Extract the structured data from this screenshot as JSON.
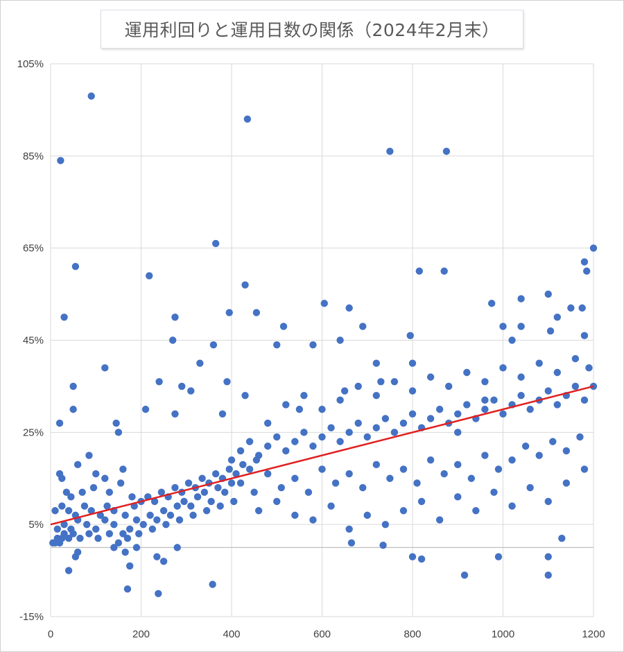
{
  "chart_data": {
    "type": "scatter",
    "title": "運用利回りと運用日数の関係（2024年2月末）",
    "xlabel": "",
    "ylabel": "",
    "xlim": [
      0,
      1200
    ],
    "ylim": [
      -15,
      105
    ],
    "x_ticks": [
      0,
      200,
      400,
      600,
      800,
      1000,
      1200
    ],
    "x_tick_labels": [
      "0",
      "200",
      "400",
      "600",
      "800",
      "1000",
      "1200"
    ],
    "y_ticks": [
      -15,
      5,
      25,
      45,
      65,
      85,
      105
    ],
    "y_tick_labels": [
      "-15%",
      "5%",
      "25%",
      "45%",
      "65%",
      "85%",
      "105%"
    ],
    "grid": true,
    "legend": "none",
    "series": [
      {
        "marker_color": "#4472C4",
        "points": [
          [
            90,
            98
          ],
          [
            435,
            93
          ],
          [
            750,
            86
          ],
          [
            875,
            86
          ],
          [
            22,
            84
          ],
          [
            365,
            66
          ],
          [
            1200,
            65
          ],
          [
            55,
            61
          ],
          [
            1180,
            62
          ],
          [
            1185,
            60
          ],
          [
            815,
            60
          ],
          [
            870,
            60
          ],
          [
            218,
            59
          ],
          [
            430,
            57
          ],
          [
            30,
            50
          ],
          [
            275,
            50
          ],
          [
            395,
            51
          ],
          [
            455,
            51
          ],
          [
            1100,
            55
          ],
          [
            1040,
            54
          ],
          [
            605,
            53
          ],
          [
            660,
            52
          ],
          [
            1150,
            52
          ],
          [
            1175,
            52
          ],
          [
            1120,
            50
          ],
          [
            975,
            53
          ],
          [
            515,
            48
          ],
          [
            690,
            48
          ],
          [
            1000,
            48
          ],
          [
            1040,
            48
          ],
          [
            795,
            46
          ],
          [
            640,
            45
          ],
          [
            270,
            45
          ],
          [
            360,
            44
          ],
          [
            500,
            44
          ],
          [
            580,
            44
          ],
          [
            1105,
            47
          ],
          [
            1180,
            46
          ],
          [
            1020,
            45
          ],
          [
            120,
            39
          ],
          [
            330,
            40
          ],
          [
            720,
            40
          ],
          [
            800,
            40
          ],
          [
            50,
            35
          ],
          [
            50,
            30
          ],
          [
            240,
            36
          ],
          [
            290,
            35
          ],
          [
            310,
            34
          ],
          [
            390,
            36
          ],
          [
            430,
            33
          ],
          [
            20,
            27
          ],
          [
            145,
            27
          ],
          [
            150,
            25
          ],
          [
            210,
            30
          ],
          [
            275,
            29
          ],
          [
            380,
            29
          ],
          [
            1200,
            35
          ],
          [
            960,
            32
          ],
          [
            900,
            25
          ],
          [
            730,
            36
          ],
          [
            650,
            34
          ],
          [
            550,
            30
          ],
          [
            480,
            27
          ],
          [
            20,
            16
          ],
          [
            25,
            15
          ],
          [
            60,
            18
          ],
          [
            85,
            20
          ],
          [
            100,
            16
          ],
          [
            120,
            15
          ],
          [
            160,
            17
          ],
          [
            35,
            12
          ],
          [
            45,
            11
          ],
          [
            70,
            12
          ],
          [
            95,
            13
          ],
          [
            130,
            12
          ],
          [
            155,
            14
          ],
          [
            180,
            11
          ],
          [
            10,
            8
          ],
          [
            25,
            9
          ],
          [
            40,
            8
          ],
          [
            55,
            7
          ],
          [
            75,
            9
          ],
          [
            90,
            8
          ],
          [
            110,
            7
          ],
          [
            125,
            9
          ],
          [
            140,
            8
          ],
          [
            165,
            7
          ],
          [
            185,
            9
          ],
          [
            200,
            10
          ],
          [
            215,
            11
          ],
          [
            230,
            10
          ],
          [
            245,
            12
          ],
          [
            260,
            11
          ],
          [
            275,
            13
          ],
          [
            290,
            12
          ],
          [
            305,
            14
          ],
          [
            320,
            13
          ],
          [
            335,
            15
          ],
          [
            350,
            14
          ],
          [
            365,
            16
          ],
          [
            380,
            15
          ],
          [
            395,
            17
          ],
          [
            410,
            16
          ],
          [
            425,
            18
          ],
          [
            440,
            17
          ],
          [
            455,
            19
          ],
          [
            15,
            4
          ],
          [
            30,
            5
          ],
          [
            45,
            4
          ],
          [
            60,
            6
          ],
          [
            80,
            5
          ],
          [
            100,
            4
          ],
          [
            120,
            6
          ],
          [
            140,
            5
          ],
          [
            160,
            3
          ],
          [
            175,
            4
          ],
          [
            190,
            6
          ],
          [
            205,
            5
          ],
          [
            220,
            7
          ],
          [
            235,
            6
          ],
          [
            250,
            8
          ],
          [
            265,
            7
          ],
          [
            280,
            9
          ],
          [
            295,
            10
          ],
          [
            310,
            9
          ],
          [
            325,
            11
          ],
          [
            340,
            12
          ],
          [
            355,
            10
          ],
          [
            370,
            13
          ],
          [
            385,
            12
          ],
          [
            400,
            14
          ],
          [
            5,
            1
          ],
          [
            10,
            1
          ],
          [
            15,
            2
          ],
          [
            20,
            1
          ],
          [
            25,
            2
          ],
          [
            30,
            3
          ],
          [
            40,
            2
          ],
          [
            50,
            3
          ],
          [
            65,
            2
          ],
          [
            85,
            3
          ],
          [
            105,
            2
          ],
          [
            130,
            3
          ],
          [
            150,
            1
          ],
          [
            170,
            2
          ],
          [
            195,
            3
          ],
          [
            225,
            4
          ],
          [
            255,
            5
          ],
          [
            285,
            6
          ],
          [
            315,
            7
          ],
          [
            345,
            8
          ],
          [
            375,
            9
          ],
          [
            405,
            10
          ],
          [
            40,
            -5
          ],
          [
            55,
            -2
          ],
          [
            60,
            -1
          ],
          [
            140,
            0
          ],
          [
            165,
            -1
          ],
          [
            175,
            -4
          ],
          [
            190,
            0
          ],
          [
            235,
            -2
          ],
          [
            250,
            -3
          ],
          [
            280,
            0
          ],
          [
            170,
            -9
          ],
          [
            238,
            -10
          ],
          [
            358,
            -8
          ],
          [
            400,
            19
          ],
          [
            420,
            21
          ],
          [
            440,
            23
          ],
          [
            460,
            20
          ],
          [
            480,
            22
          ],
          [
            500,
            24
          ],
          [
            520,
            21
          ],
          [
            540,
            23
          ],
          [
            560,
            25
          ],
          [
            580,
            22
          ],
          [
            600,
            24
          ],
          [
            620,
            26
          ],
          [
            640,
            23
          ],
          [
            660,
            25
          ],
          [
            680,
            27
          ],
          [
            700,
            24
          ],
          [
            720,
            26
          ],
          [
            740,
            28
          ],
          [
            760,
            25
          ],
          [
            780,
            27
          ],
          [
            800,
            29
          ],
          [
            820,
            26
          ],
          [
            840,
            28
          ],
          [
            860,
            30
          ],
          [
            880,
            27
          ],
          [
            900,
            29
          ],
          [
            920,
            31
          ],
          [
            940,
            28
          ],
          [
            960,
            30
          ],
          [
            980,
            32
          ],
          [
            1000,
            29
          ],
          [
            1020,
            31
          ],
          [
            1040,
            33
          ],
          [
            1060,
            30
          ],
          [
            1080,
            32
          ],
          [
            1100,
            34
          ],
          [
            1120,
            31
          ],
          [
            1140,
            33
          ],
          [
            1160,
            35
          ],
          [
            1180,
            32
          ],
          [
            420,
            14
          ],
          [
            450,
            12
          ],
          [
            480,
            16
          ],
          [
            510,
            13
          ],
          [
            540,
            15
          ],
          [
            570,
            12
          ],
          [
            600,
            17
          ],
          [
            630,
            14
          ],
          [
            660,
            16
          ],
          [
            690,
            13
          ],
          [
            720,
            18
          ],
          [
            750,
            15
          ],
          [
            780,
            17
          ],
          [
            810,
            14
          ],
          [
            840,
            19
          ],
          [
            870,
            16
          ],
          [
            900,
            18
          ],
          [
            930,
            15
          ],
          [
            960,
            20
          ],
          [
            990,
            17
          ],
          [
            1020,
            19
          ],
          [
            1050,
            22
          ],
          [
            1080,
            20
          ],
          [
            1110,
            23
          ],
          [
            1140,
            21
          ],
          [
            1170,
            24
          ],
          [
            520,
            31
          ],
          [
            560,
            33
          ],
          [
            600,
            30
          ],
          [
            640,
            32
          ],
          [
            680,
            35
          ],
          [
            720,
            33
          ],
          [
            760,
            36
          ],
          [
            800,
            34
          ],
          [
            840,
            37
          ],
          [
            880,
            35
          ],
          [
            920,
            38
          ],
          [
            960,
            36
          ],
          [
            1000,
            39
          ],
          [
            1040,
            37
          ],
          [
            1080,
            40
          ],
          [
            1120,
            38
          ],
          [
            1160,
            41
          ],
          [
            1190,
            39
          ],
          [
            460,
            8
          ],
          [
            500,
            10
          ],
          [
            540,
            7
          ],
          [
            580,
            6
          ],
          [
            620,
            9
          ],
          [
            660,
            4
          ],
          [
            700,
            7
          ],
          [
            740,
            5
          ],
          [
            780,
            8
          ],
          [
            820,
            10
          ],
          [
            860,
            6
          ],
          [
            900,
            11
          ],
          [
            940,
            8
          ],
          [
            980,
            12
          ],
          [
            1020,
            9
          ],
          [
            1060,
            13
          ],
          [
            1100,
            10
          ],
          [
            1140,
            14
          ],
          [
            1180,
            17
          ],
          [
            665,
            1
          ],
          [
            735,
            0.5
          ],
          [
            800,
            -2
          ],
          [
            820,
            -2.5
          ],
          [
            915,
            -6
          ],
          [
            990,
            -2
          ],
          [
            1100,
            -2
          ],
          [
            1100,
            -6
          ],
          [
            1130,
            2
          ]
        ]
      },
      {
        "type": "line",
        "line_color": "#E02020",
        "x": [
          0,
          1200
        ],
        "y": [
          5,
          35
        ]
      }
    ]
  }
}
